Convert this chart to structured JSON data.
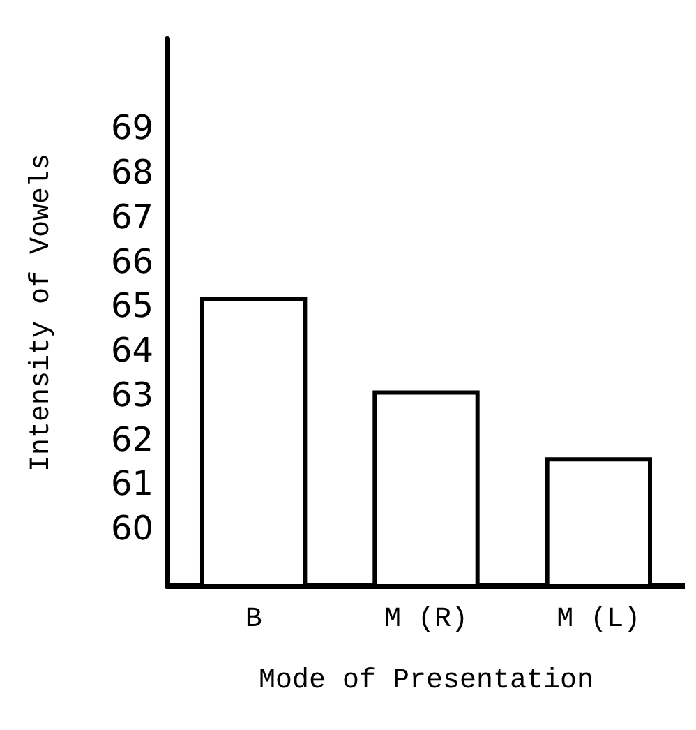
{
  "chart_data": {
    "type": "bar",
    "xlabel": "Mode of Presentation",
    "ylabel": "Intensity of Vowels",
    "categories": [
      "B",
      "M (R)",
      "M (L)"
    ],
    "values": [
      65.2,
      63.1,
      61.6
    ],
    "color": "#ffffff",
    "ylim": [
      58.7,
      71
    ],
    "yticks": [
      60,
      61,
      62,
      63,
      64,
      65,
      66,
      67,
      68,
      69
    ],
    "grid": false
  }
}
